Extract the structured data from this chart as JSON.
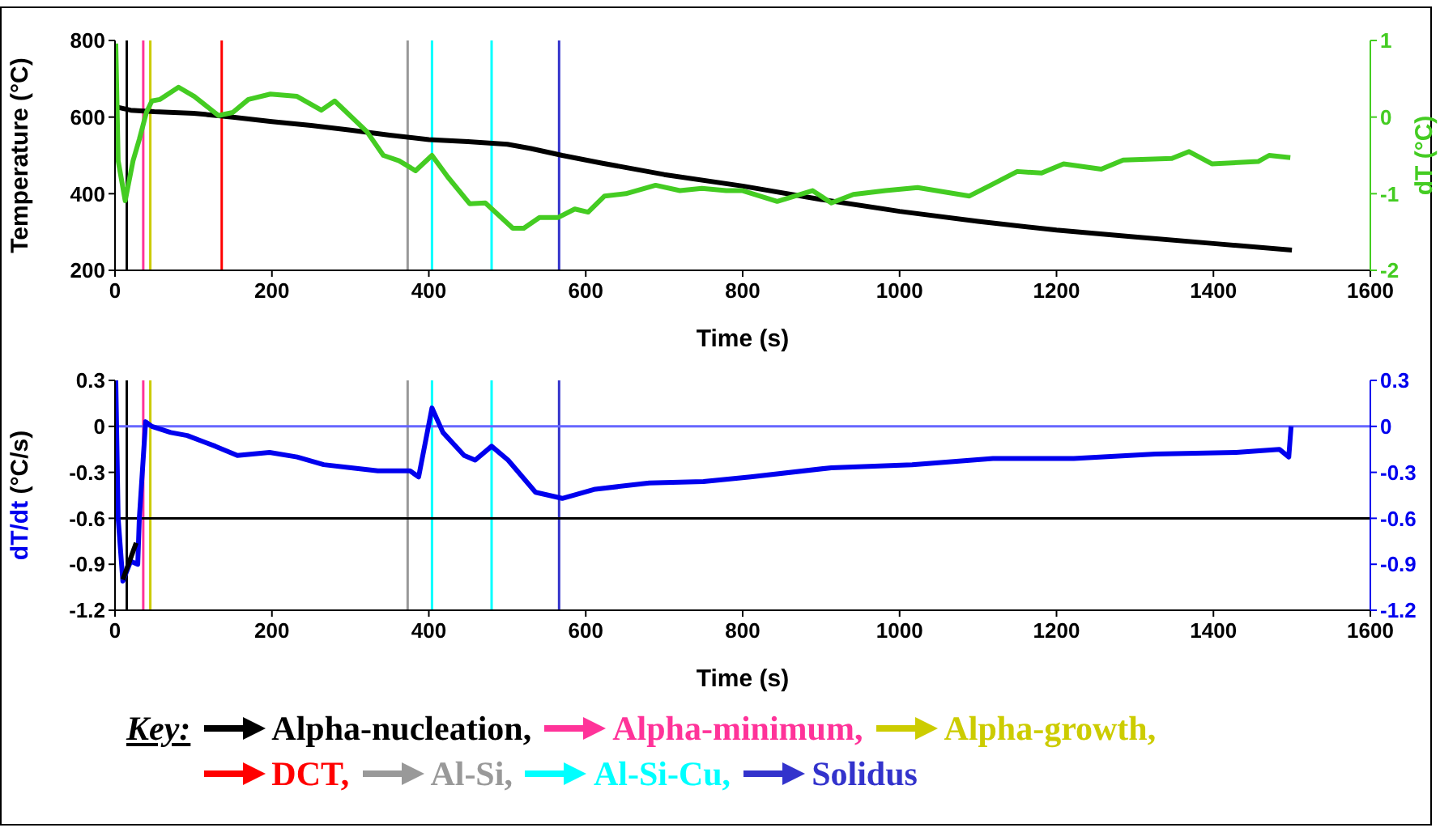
{
  "chart_data": [
    {
      "type": "line",
      "xlabel": "Time (s)",
      "ylabel": "Temperature (°C)",
      "y2label": "dT (°C)",
      "legend_title": "Key:",
      "legend": "bottom",
      "xlim": [
        0,
        1600
      ],
      "xticks": [
        0,
        200,
        400,
        600,
        800,
        1000,
        1200,
        1400,
        1600
      ],
      "ylim": [
        200,
        800
      ],
      "yticks": [
        200,
        400,
        600,
        800
      ],
      "y2lim": [
        -2,
        1
      ],
      "y2ticks": [
        -2,
        -1,
        0,
        1
      ],
      "series": [
        {
          "color": "#000000",
          "x": [
            0,
            5,
            20,
            50,
            100,
            150,
            200,
            250,
            300,
            350,
            400,
            450,
            500,
            530,
            570,
            620,
            700,
            800,
            900,
            1000,
            1100,
            1200,
            1300,
            1400,
            1500
          ],
          "values": [
            630,
            625,
            618,
            614,
            610,
            600,
            588,
            578,
            566,
            553,
            541,
            536,
            529,
            518,
            500,
            480,
            450,
            420,
            385,
            354,
            328,
            305,
            287,
            270,
            253
          ]
        },
        {
          "color": "#44cc22",
          "axis": "y2",
          "x": [
            1,
            4,
            13,
            23,
            31,
            40,
            47,
            57,
            81,
            101,
            132,
            150,
            170,
            198,
            232,
            263,
            280,
            321,
            342,
            362,
            383,
            404,
            424,
            452,
            472,
            507,
            521,
            541,
            565,
            586,
            603,
            624,
            651,
            689,
            720,
            748,
            779,
            800,
            844,
            889,
            913,
            941,
            982,
            1023,
            1089,
            1116,
            1150,
            1181,
            1209,
            1257,
            1285,
            1347,
            1369,
            1398,
            1457,
            1471,
            1498
          ],
          "values": [
            0.96,
            -0.57,
            -1.09,
            -0.57,
            -0.29,
            0.06,
            0.21,
            0.23,
            0.39,
            0.27,
            0.02,
            0.06,
            0.23,
            0.3,
            0.27,
            0.09,
            0.21,
            -0.19,
            -0.5,
            -0.57,
            -0.7,
            -0.5,
            -0.78,
            -1.13,
            -1.12,
            -1.45,
            -1.45,
            -1.31,
            -1.31,
            -1.2,
            -1.24,
            -1.03,
            -1,
            -0.89,
            -0.96,
            -0.93,
            -0.96,
            -0.96,
            -1.1,
            -0.96,
            -1.12,
            -1.01,
            -0.96,
            -0.92,
            -1.03,
            -0.89,
            -0.71,
            -0.73,
            -0.61,
            -0.68,
            -0.56,
            -0.54,
            -0.45,
            -0.61,
            -0.58,
            -0.5,
            -0.53
          ]
        }
      ],
      "ref_lines": [
        {
          "axis": "x",
          "value": 15,
          "label": "Alpha-nucleation,",
          "color": "#000000"
        },
        {
          "axis": "x",
          "value": 36,
          "label": "Alpha-minimum,",
          "color": "#ff3399"
        },
        {
          "axis": "x",
          "value": 45,
          "label": "Alpha-growth,",
          "color": "#cccc00"
        },
        {
          "axis": "x",
          "value": 136,
          "label": "DCT,",
          "color": "#ff0000"
        },
        {
          "axis": "x",
          "value": 373,
          "label": "Al-Si,",
          "color": "#999999"
        },
        {
          "axis": "x",
          "value": 404,
          "label": "Al-Si-Cu,",
          "color": "#00ffff"
        },
        {
          "axis": "x",
          "value": 480,
          "color": "#00ffff"
        },
        {
          "axis": "x",
          "value": 566,
          "label": "Solidus",
          "color": "#3333cc"
        }
      ]
    },
    {
      "type": "line",
      "xlabel": "Time (s)",
      "ylabel": "dT/dt (°C/s)",
      "xlim": [
        0,
        1600
      ],
      "xticks": [
        0,
        200,
        400,
        600,
        800,
        1000,
        1200,
        1400,
        1600
      ],
      "ylim": [
        -1.2,
        0.3
      ],
      "yticks": [
        -1.2,
        -0.9,
        -0.6,
        -0.3,
        0,
        0.3
      ],
      "y2lim": [
        -1.2,
        0.3
      ],
      "y2ticks": [
        -1.2,
        -0.9,
        -0.6,
        -0.3,
        0,
        0.3
      ],
      "series": [
        {
          "color": "#0000ee",
          "x": [
            1,
            4,
            10,
            20,
            29,
            31,
            39,
            47,
            71,
            92,
            128,
            156,
            197,
            232,
            266,
            301,
            335,
            376,
            387,
            404,
            418,
            445,
            459,
            480,
            501,
            536,
            570,
            612,
            681,
            750,
            810,
            913,
            1016,
            1119,
            1222,
            1326,
            1429,
            1484,
            1496,
            1499
          ],
          "values": [
            0.3,
            -0.6,
            -1.01,
            -0.88,
            -0.9,
            -0.6,
            0.03,
            0,
            -0.04,
            -0.06,
            -0.13,
            -0.19,
            -0.17,
            -0.2,
            -0.25,
            -0.27,
            -0.29,
            -0.29,
            -0.33,
            0.12,
            -0.04,
            -0.19,
            -0.22,
            -0.13,
            -0.22,
            -0.43,
            -0.47,
            -0.41,
            -0.37,
            -0.36,
            -0.33,
            -0.27,
            -0.25,
            -0.21,
            -0.21,
            -0.18,
            -0.17,
            -0.15,
            -0.2,
            0
          ]
        },
        {
          "color": "#000000",
          "x": [
            10,
            27
          ],
          "values": [
            -1.0,
            -0.76
          ]
        }
      ],
      "ref_lines": [
        {
          "axis": "x",
          "value": 15,
          "color": "#000000"
        },
        {
          "axis": "x",
          "value": 36,
          "color": "#ff3399"
        },
        {
          "axis": "x",
          "value": 45,
          "color": "#cccc00"
        },
        {
          "axis": "x",
          "value": 373,
          "color": "#999999"
        },
        {
          "axis": "x",
          "value": 404,
          "color": "#00ffff"
        },
        {
          "axis": "x",
          "value": 480,
          "color": "#00ffff"
        },
        {
          "axis": "x",
          "value": 566,
          "color": "#3333cc"
        },
        {
          "axis": "y",
          "value": 0,
          "color": "#6666ff"
        },
        {
          "axis": "y",
          "value": -0.6,
          "color": "#000000"
        }
      ]
    }
  ]
}
